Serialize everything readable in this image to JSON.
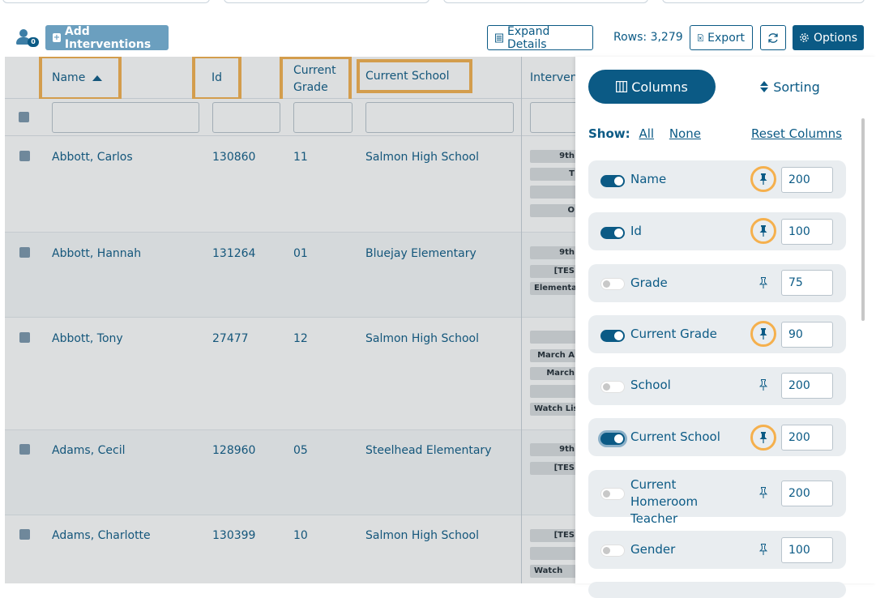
{
  "toolbar": {
    "user_badge": "0",
    "add_label": "Add Interventions",
    "expand_label": "Expand Details",
    "rows_text": "Rows: 3,279",
    "export_label": "Export",
    "options_label": "Options"
  },
  "grid": {
    "headers": {
      "name": "Name",
      "id": "Id",
      "grade_line1": "Current",
      "grade_line2": "Grade",
      "school": "Current School",
      "interventions": "Interven"
    },
    "rows": [
      {
        "name": "Abbott, Carlos",
        "id": "130860",
        "grade": "11",
        "school": "Salmon High School",
        "tags": [
          "9th",
          "T",
          "",
          "O"
        ]
      },
      {
        "name": "Abbott, Hannah",
        "id": "131264",
        "grade": "01",
        "school": "Bluejay Elementary",
        "tags": [
          "9th",
          "[TES",
          "Elementa"
        ]
      },
      {
        "name": "Abbott, Tony",
        "id": "27477",
        "grade": "12",
        "school": "Salmon High School",
        "tags": [
          "",
          "March A",
          "March",
          "",
          "Watch Lis"
        ]
      },
      {
        "name": "Adams, Cecil",
        "id": "128960",
        "grade": "05",
        "school": "Steelhead Elementary",
        "tags": [
          "9th",
          "[TES"
        ]
      },
      {
        "name": "Adams, Charlotte",
        "id": "130399",
        "grade": "10",
        "school": "Salmon High School",
        "tags": [
          "[TES",
          "",
          "Watch"
        ]
      }
    ]
  },
  "panel": {
    "tab_columns": "Columns",
    "tab_sorting": "Sorting",
    "show_label": "Show:",
    "show_all": "All",
    "show_none": "None",
    "reset_label": "Reset Columns",
    "columns": [
      {
        "label": "Name",
        "enabled": true,
        "pinned": true,
        "width": "200"
      },
      {
        "label": "Id",
        "enabled": true,
        "pinned": true,
        "width": "100"
      },
      {
        "label": "Grade",
        "enabled": false,
        "pinned": false,
        "width": "75"
      },
      {
        "label": "Current Grade",
        "enabled": true,
        "pinned": true,
        "width": "90"
      },
      {
        "label": "School",
        "enabled": false,
        "pinned": false,
        "width": "200"
      },
      {
        "label": "Current School",
        "enabled": true,
        "pinned": true,
        "width": "200"
      },
      {
        "label": "Current Homeroom Teacher",
        "enabled": false,
        "pinned": false,
        "width": "200"
      },
      {
        "label": "Gender",
        "enabled": false,
        "pinned": false,
        "width": "100"
      }
    ]
  },
  "colors": {
    "primary": "#0b5a85",
    "highlight": "#f5b04d",
    "add_button": "#6b9fbf"
  }
}
